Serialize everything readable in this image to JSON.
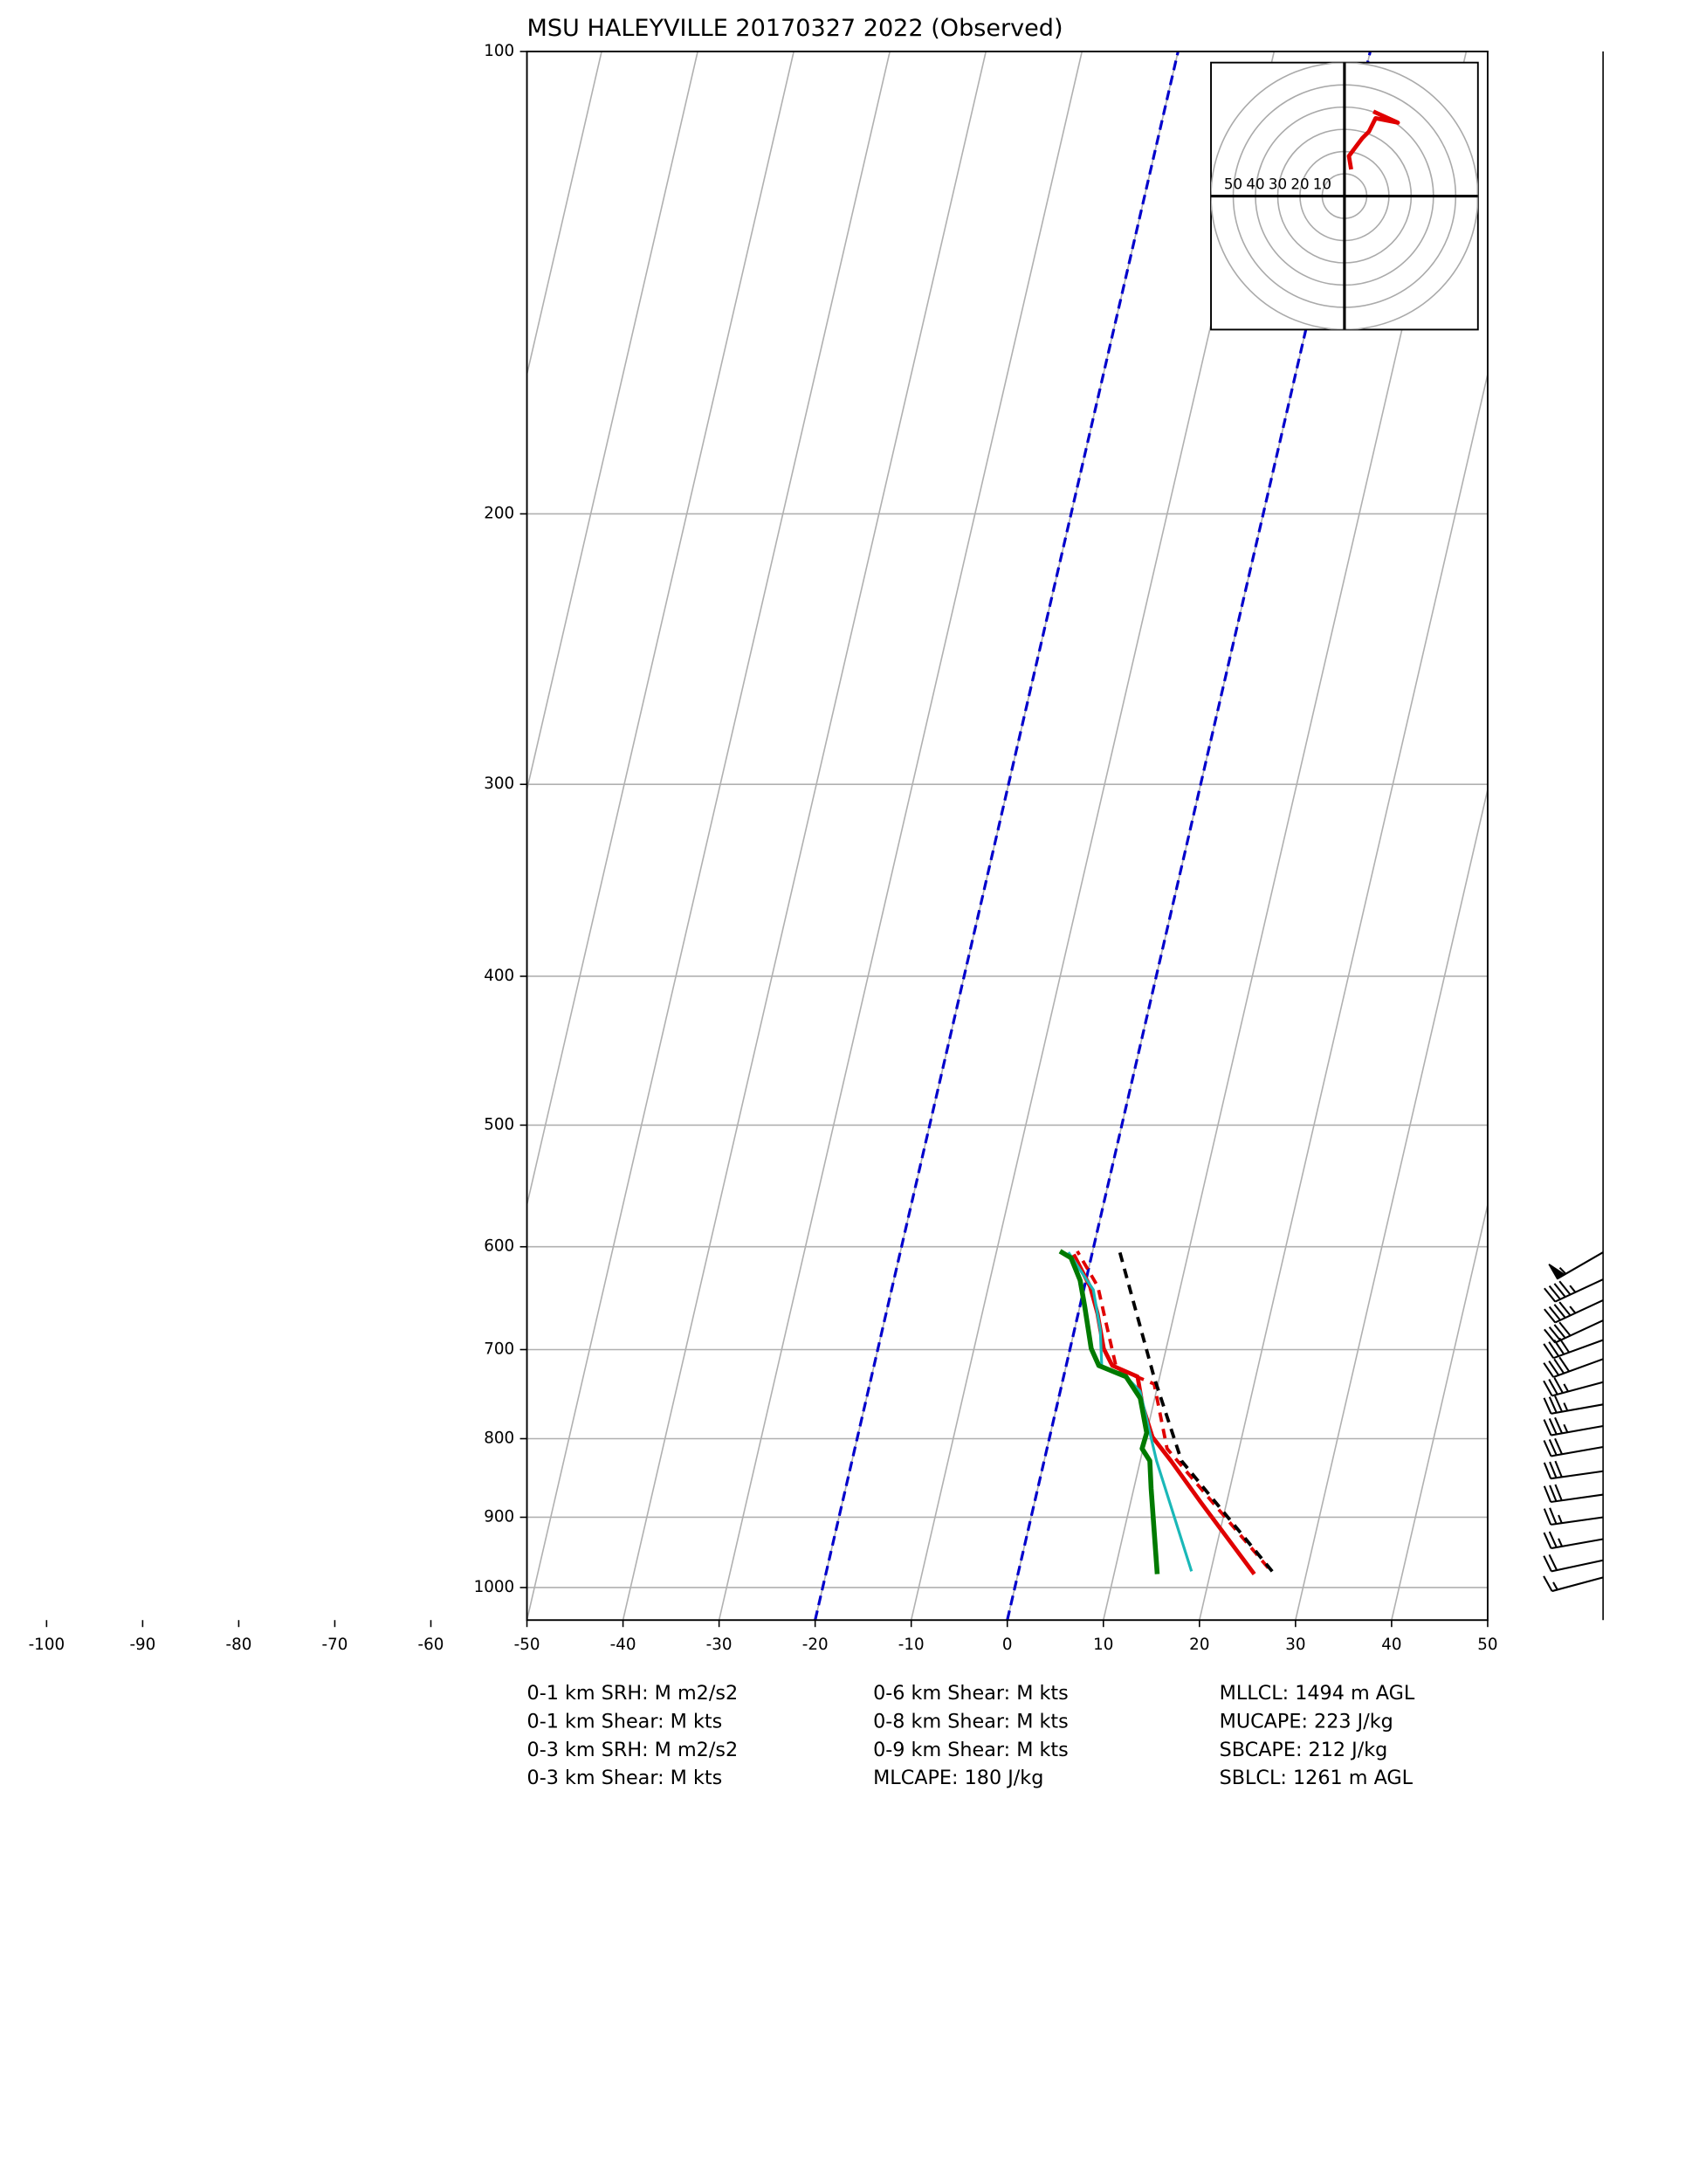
{
  "chart_data": {
    "type": "skewt",
    "title": "MSU HALEYVILLE 20170327 2022   (Observed)",
    "ylim": [
      1050,
      100
    ],
    "yticks": [
      100,
      200,
      300,
      400,
      500,
      600,
      700,
      800,
      900,
      1000
    ],
    "log_y": true,
    "xlim": [
      -50,
      50
    ],
    "xticks": [
      -100,
      -90,
      -80,
      -70,
      -60,
      -50,
      -40,
      -30,
      -20,
      -10,
      0,
      10,
      20,
      30,
      40,
      50
    ],
    "grid": true,
    "highlight_isotherms": [
      -20,
      0
    ],
    "highlight_color": "#0000cc",
    "series": [
      {
        "color": "#e00000",
        "style": "solid",
        "pressure": [
          980,
          880,
          827,
          798,
          761,
          729,
          717,
          699,
          663,
          637,
          607
        ],
        "values": [
          24.6,
          17.3,
          13.2,
          10.7,
          8.9,
          7.7,
          4.8,
          3.5,
          2.0,
          0.6,
          -1.9
        ]
      },
      {
        "color": "#e00000",
        "style": "dashed",
        "pressure": [
          971,
          812,
          737,
          720,
          670,
          637,
          604
        ],
        "values": [
          25.9,
          12.5,
          9.6,
          5.3,
          3.0,
          1.4,
          -1.6
        ]
      },
      {
        "color": "#1ab8b8",
        "style": "thin",
        "pressure": [
          976,
          827,
          745,
          729,
          717,
          680,
          640,
          605
        ],
        "values": [
          18.0,
          11.7,
          8.3,
          6.5,
          3.7,
          2.7,
          1.0,
          -2.5
        ]
      },
      {
        "color": "#007a00",
        "style": "thick",
        "pressure": [
          980,
          862,
          827,
          812,
          793,
          753,
          729,
          717,
          699,
          656,
          631,
          610,
          604
        ],
        "values": [
          14.5,
          11.8,
          11.0,
          9.9,
          10.0,
          8.5,
          6.5,
          3.4,
          2.2,
          0.5,
          -0.6,
          -2.1,
          -3.4
        ]
      },
      {
        "color": "#000000",
        "style": "dashed",
        "pressure": [
          976,
          827,
          729,
          604
        ],
        "values": [
          26.4,
          14.3,
          9.4,
          2.8
        ]
      }
    ],
    "barbs": {
      "pressure": [
        605,
        630,
        650,
        670,
        690,
        710,
        735,
        760,
        785,
        810,
        840,
        870,
        900,
        930,
        960,
        985
      ],
      "speed": [
        55,
        45,
        45,
        40,
        40,
        40,
        35,
        35,
        35,
        30,
        30,
        30,
        25,
        25,
        20,
        15
      ],
      "direction": [
        240,
        245,
        245,
        245,
        250,
        250,
        255,
        260,
        260,
        260,
        262,
        262,
        262,
        260,
        258,
        255
      ]
    },
    "hodograph": {
      "lim": [
        -60,
        60
      ],
      "rings": [
        10,
        20,
        30,
        40,
        50,
        60
      ],
      "ring_labels": [
        10,
        20,
        30,
        40,
        50
      ],
      "color": "#e00000",
      "u": [
        3,
        2,
        5,
        8,
        11,
        14,
        24,
        13
      ],
      "v": [
        12,
        18,
        22,
        26,
        29,
        35,
        33,
        38
      ]
    },
    "stats": [
      [
        "0-1 km SRH: M m2/s2",
        "0-1 km Shear: M kts",
        "0-3 km SRH: M m2/s2",
        "0-3 km Shear: M kts"
      ],
      [
        "0-6 km Shear: M kts",
        "0-8 km Shear: M kts",
        "0-9 km Shear: M kts",
        "MLCAPE: 180 J/kg"
      ],
      [
        "MLLCL: 1494 m AGL",
        "MUCAPE: 223 J/kg",
        "SBCAPE: 212 J/kg",
        "SBLCL: 1261 m AGL"
      ]
    ]
  }
}
